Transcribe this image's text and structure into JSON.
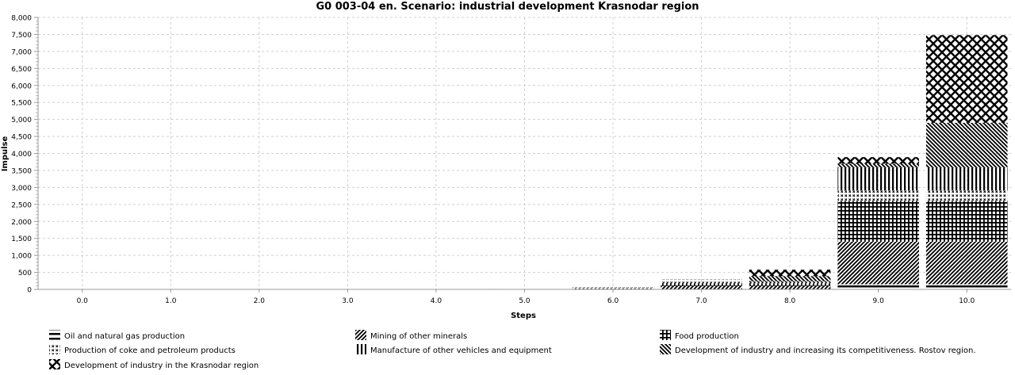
{
  "chart_data": {
    "type": "bar",
    "stacked": true,
    "title": "G0 003-04 en. Scenario: industrial development Krasnodar region",
    "xlabel": "Steps",
    "ylabel": "Impulse",
    "ylim": [
      0,
      8000
    ],
    "yticks": [
      0,
      500,
      1000,
      1500,
      2000,
      2500,
      3000,
      3500,
      4000,
      4500,
      5000,
      5500,
      6000,
      6500,
      7000,
      7500,
      8000
    ],
    "grid": true,
    "legend_position": "bottom",
    "categories": [
      "0.0",
      "1.0",
      "2.0",
      "3.0",
      "4.0",
      "5.0",
      "6.0",
      "7.0",
      "8.0",
      "9.0",
      "10.0"
    ],
    "series": [
      {
        "name": "Oil and natural gas production",
        "pattern": "horizontal-lines",
        "values": [
          0,
          0,
          0,
          0,
          0,
          2,
          5,
          10,
          10,
          150,
          150
        ]
      },
      {
        "name": "Mining of other minerals",
        "pattern": "diagonal-lines",
        "values": [
          0,
          0,
          0,
          0,
          1,
          5,
          15,
          90,
          90,
          1250,
          1250
        ]
      },
      {
        "name": "Food production",
        "pattern": "grid",
        "values": [
          0,
          0,
          0,
          0,
          1,
          5,
          10,
          80,
          80,
          1200,
          1200
        ]
      },
      {
        "name": "Production of coke and petroleum products",
        "pattern": "small-crosses",
        "values": [
          0,
          0,
          0,
          1,
          3,
          8,
          30,
          110,
          40,
          310,
          310
        ]
      },
      {
        "name": "Manufacture of other vehicles and equipment",
        "pattern": "vertical-lines",
        "values": [
          0,
          0,
          0,
          0,
          0,
          0,
          0,
          0,
          20,
          665,
          665
        ]
      },
      {
        "name": "Development of industry and increasing its competitiveness. Rostov region.",
        "pattern": "back-diagonal-lines",
        "values": [
          0,
          0,
          0,
          0,
          0,
          0,
          0,
          0,
          150,
          120,
          1325
        ]
      },
      {
        "name": "Development of industry in the Krasnodar region",
        "pattern": "diamond-lattice",
        "values": [
          0,
          0,
          0,
          0,
          0,
          0,
          0,
          0,
          190,
          195,
          2580
        ]
      }
    ],
    "colors": {
      "ink": "#000000",
      "grid": "#d0d0d0",
      "axis": "#999999"
    }
  }
}
